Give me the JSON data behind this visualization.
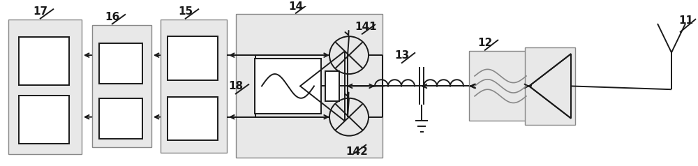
{
  "bg_color": "#ffffff",
  "line_color": "#1a1a1a",
  "gray_color": "#888888",
  "box_fill": "#e8e8e8",
  "figsize": [
    10.0,
    2.38
  ],
  "dpi": 100,
  "lw": 1.4,
  "lw_thin": 1.0
}
